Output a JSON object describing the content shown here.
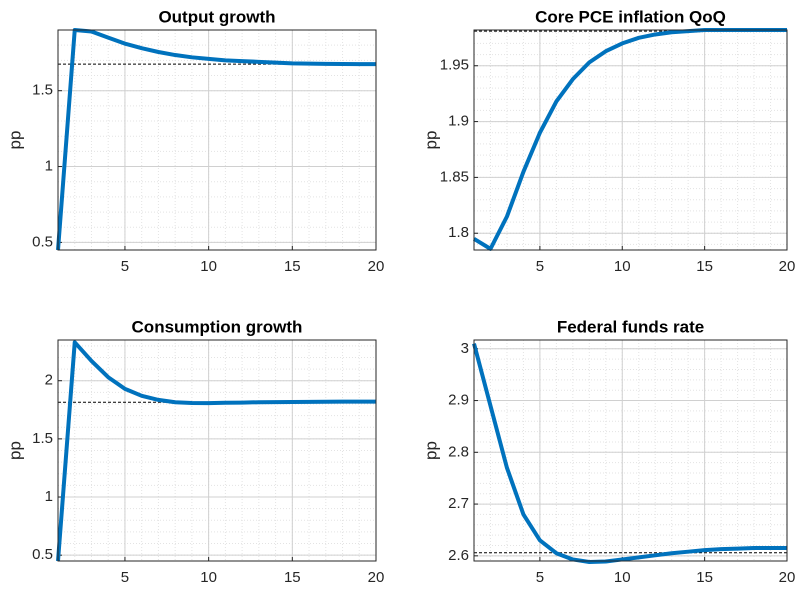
{
  "chart_data": [
    {
      "type": "line",
      "title": "Output growth",
      "ylabel": "pp",
      "color": "#0072bd",
      "grid": true,
      "minor_grid": true,
      "x": [
        1,
        2,
        3,
        4,
        5,
        6,
        7,
        8,
        9,
        10,
        11,
        12,
        13,
        14,
        15,
        16,
        17,
        18,
        19,
        20
      ],
      "values": [
        0.45,
        1.9,
        1.89,
        1.85,
        1.81,
        1.78,
        1.755,
        1.735,
        1.72,
        1.71,
        1.7,
        1.695,
        1.69,
        1.685,
        1.68,
        1.678,
        1.677,
        1.676,
        1.675,
        1.675
      ],
      "reference": 1.675,
      "xlim": [
        1,
        20
      ],
      "xticks": [
        5,
        10,
        15,
        20
      ],
      "ylim": [
        0.45,
        1.9
      ],
      "yticks": [
        0.5,
        1,
        1.5
      ]
    },
    {
      "type": "line",
      "title": "Core PCE inflation QoQ",
      "ylabel": "pp",
      "color": "#0072bd",
      "grid": true,
      "minor_grid": true,
      "x": [
        1,
        2,
        3,
        4,
        5,
        6,
        7,
        8,
        9,
        10,
        11,
        12,
        13,
        14,
        15,
        16,
        17,
        18,
        19,
        20
      ],
      "values": [
        1.795,
        1.786,
        1.815,
        1.855,
        1.89,
        1.918,
        1.938,
        1.953,
        1.963,
        1.97,
        1.975,
        1.978,
        1.98,
        1.981,
        1.982,
        1.982,
        1.982,
        1.982,
        1.982,
        1.982
      ],
      "reference": 1.981,
      "xlim": [
        1,
        20
      ],
      "xticks": [
        5,
        10,
        15,
        20
      ],
      "ylim": [
        1.785,
        1.982
      ],
      "yticks": [
        1.8,
        1.85,
        1.9,
        1.95
      ]
    },
    {
      "type": "line",
      "title": "Consumption growth",
      "ylabel": "pp",
      "color": "#0072bd",
      "grid": true,
      "minor_grid": true,
      "x": [
        1,
        2,
        3,
        4,
        5,
        6,
        7,
        8,
        9,
        10,
        11,
        12,
        13,
        14,
        15,
        16,
        17,
        18,
        19,
        20
      ],
      "values": [
        0.45,
        2.33,
        2.17,
        2.03,
        1.93,
        1.87,
        1.835,
        1.815,
        1.808,
        1.807,
        1.81,
        1.812,
        1.815,
        1.816,
        1.817,
        1.818,
        1.819,
        1.82,
        1.82,
        1.82
      ],
      "reference": 1.815,
      "xlim": [
        1,
        20
      ],
      "xticks": [
        5,
        10,
        15,
        20
      ],
      "ylim": [
        0.45,
        2.35
      ],
      "yticks": [
        0.5,
        1,
        1.5,
        2
      ]
    },
    {
      "type": "line",
      "title": "Federal funds rate",
      "ylabel": "pp",
      "color": "#0072bd",
      "grid": true,
      "minor_grid": true,
      "x": [
        1,
        2,
        3,
        4,
        5,
        6,
        7,
        8,
        9,
        10,
        11,
        12,
        13,
        14,
        15,
        16,
        17,
        18,
        19,
        20
      ],
      "values": [
        3.01,
        2.89,
        2.77,
        2.68,
        2.63,
        2.605,
        2.593,
        2.588,
        2.589,
        2.593,
        2.597,
        2.601,
        2.605,
        2.608,
        2.611,
        2.613,
        2.614,
        2.615,
        2.615,
        2.615
      ],
      "reference": 2.606,
      "xlim": [
        1,
        20
      ],
      "xticks": [
        5,
        10,
        15,
        20
      ],
      "ylim": [
        2.59,
        3.017
      ],
      "yticks": [
        2.6,
        2.7,
        2.8,
        2.9,
        3
      ]
    }
  ]
}
